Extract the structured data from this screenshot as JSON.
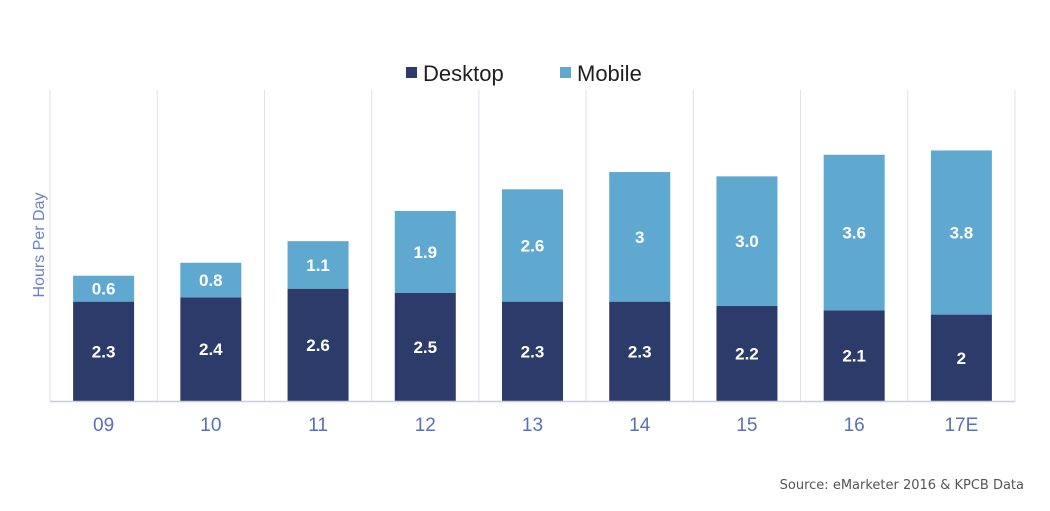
{
  "colors": {
    "desktop": "#2d3b6b",
    "mobile": "#5fa8d0",
    "grid": "#dde1ee",
    "axis": "#c9cedd"
  },
  "source": "Source: eMarketer 2016 & KPCB Data",
  "chart_data": {
    "type": "bar",
    "stacked": true,
    "categories": [
      "09",
      "10",
      "11",
      "12",
      "13",
      "14",
      "15",
      "16",
      "17E"
    ],
    "series": [
      {
        "name": "Desktop",
        "values": [
          2.3,
          2.4,
          2.6,
          2.5,
          2.3,
          2.3,
          2.2,
          2.1,
          2
        ],
        "labels": [
          "2.3",
          "2.4",
          "2.6",
          "2.5",
          "2.3",
          "2.3",
          "2.2",
          "2.1",
          "2"
        ]
      },
      {
        "name": "Mobile",
        "values": [
          0.6,
          0.8,
          1.1,
          1.9,
          2.6,
          3,
          3.0,
          3.6,
          3.8
        ],
        "labels": [
          "0.6",
          "0.8",
          "1.1",
          "1.9",
          "2.6",
          "3",
          "3.0",
          "3.6",
          "3.8"
        ]
      }
    ],
    "title": "",
    "xlabel": "",
    "ylabel": "Hours Per Day",
    "ylim": [
      0,
      6
    ],
    "grid": "vertical",
    "legend": "top-center"
  }
}
